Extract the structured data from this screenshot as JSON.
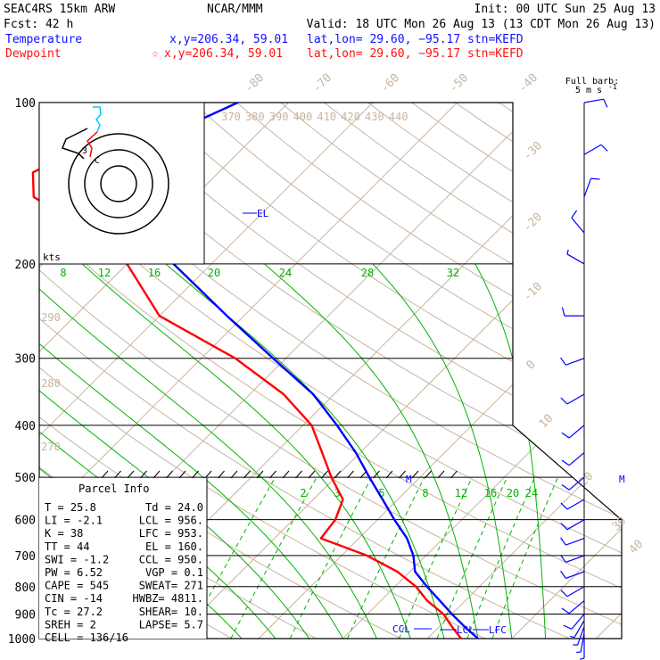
{
  "header": {
    "model": "SEAC4RS 15km ARW",
    "center": "NCAR/MMM",
    "init": "Init: 00 UTC Sun 25 Aug 13",
    "fcst": "Fcst:   42 h",
    "valid": "Valid: 18 UTC Mon 26 Aug 13 (13 CDT Mon 26 Aug 13)",
    "temp_label": "Temperature",
    "temp_xy": "x,y=206.34, 59.01",
    "temp_latlon": "lat,lon= 29.60, −95.17",
    "temp_stn": "stn=KEFD",
    "dew_label": "Dewpoint",
    "dew_xy": "x,y=206.34, 59.01",
    "dew_latlon": "lat,lon= 29.60, −95.17",
    "dew_stn": "stn=KEFD",
    "barb_title_1": "Full barb:",
    "barb_title_2": "5 m s",
    "barb_title_sup": "-1"
  },
  "hodograph": {
    "unit_label": "kts"
  },
  "parcel_info": {
    "title": "Parcel Info",
    "rows": [
      {
        "l": "T   =   25.8",
        "r": "Td =  24.0"
      },
      {
        "l": "LI  =   -2.1",
        "r": "LCL =  956."
      },
      {
        "l": "K   =     38",
        "r": "LFC =  953."
      },
      {
        "l": "TT  =     44",
        "r": "EL  =  160."
      },
      {
        "l": "SWI =   -1.2",
        "r": "CCL =  950."
      },
      {
        "l": "PW  =   6.52",
        "r": "VGP =   0.1"
      },
      {
        "l": "CAPE =   545",
        "r": "SWEAT=  271"
      },
      {
        "l": "CIN  =   -14",
        "r": "HWBZ= 4811."
      },
      {
        "l": "Tc  =   27.2",
        "r": "SHEAR=  10."
      },
      {
        "l": "SREH =     2",
        "r": "LAPSE=  5.7"
      },
      {
        "l": "CELL = 136/16",
        "r": ""
      }
    ]
  },
  "annotations": {
    "el": "EL",
    "ccl": "CCL",
    "lcl": "LCL",
    "lfc": "LFC",
    "m": "M"
  },
  "colors": {
    "temperature": "#0000ff",
    "dewpoint": "#ff0000",
    "isotherm": "#c8b4a0",
    "mixing_ratio": "#00b400",
    "moist_adiabat": "#00b400",
    "axis": "#000000"
  },
  "chart_data": {
    "type": "line",
    "subtype": "skew-T log-P",
    "pressure_levels_hPa": [
      100,
      200,
      300,
      400,
      500,
      600,
      700,
      800,
      900,
      1000
    ],
    "y_tick_labels": [
      "100",
      "200",
      "300",
      "400",
      "500",
      "600",
      "700",
      "800",
      "900",
      "1000"
    ],
    "isotherm_labels": [
      "-80",
      "-70",
      "-60",
      "-50",
      "-40",
      "-30",
      "-20",
      "-10",
      "0",
      "10",
      "20",
      "30",
      "40"
    ],
    "theta_labels": [
      "370",
      "380",
      "390",
      "400",
      "410",
      "420",
      "430",
      "440"
    ],
    "dry_adiabat_labels": [
      "290",
      "280",
      "270"
    ],
    "mixing_ratio_labels_upper": [
      "8",
      "12",
      "16",
      "20",
      "24",
      "28",
      "32"
    ],
    "mixing_ratio_labels_lower": [
      "2",
      "3",
      "5",
      "8",
      "12",
      "16",
      "20",
      "24"
    ],
    "series": [
      {
        "name": "Temperature",
        "color": "#0000ff",
        "points": [
          {
            "p": 1000,
            "t": 26
          },
          {
            "p": 950,
            "t": 23
          },
          {
            "p": 900,
            "t": 20
          },
          {
            "p": 850,
            "t": 17
          },
          {
            "p": 800,
            "t": 13.8
          },
          {
            "p": 750,
            "t": 10.6
          },
          {
            "p": 700,
            "t": 8.5
          },
          {
            "p": 650,
            "t": 5.7
          },
          {
            "p": 600,
            "t": 2.0
          },
          {
            "p": 550,
            "t": -1.8
          },
          {
            "p": 500,
            "t": -6.0
          },
          {
            "p": 450,
            "t": -10.5
          },
          {
            "p": 400,
            "t": -16.0
          },
          {
            "p": 350,
            "t": -22.5
          },
          {
            "p": 300,
            "t": -31.5
          },
          {
            "p": 250,
            "t": -42.0
          },
          {
            "p": 200,
            "t": -54.5
          },
          {
            "p": 175,
            "t": -62.0
          },
          {
            "p": 150,
            "t": -72.5
          },
          {
            "p": 135,
            "t": -77.0
          },
          {
            "p": 120,
            "t": -72.0
          },
          {
            "p": 100,
            "t": -66.0
          }
        ]
      },
      {
        "name": "Dewpoint",
        "color": "#ff0000",
        "points": [
          {
            "p": 1000,
            "t": 24.0
          },
          {
            "p": 950,
            "t": 21.5
          },
          {
            "p": 900,
            "t": 19.0
          },
          {
            "p": 850,
            "t": 15.5
          },
          {
            "p": 800,
            "t": 12.5
          },
          {
            "p": 750,
            "t": 8.5
          },
          {
            "p": 700,
            "t": 3.0
          },
          {
            "p": 650,
            "t": -4.5
          },
          {
            "p": 600,
            "t": -5.0
          },
          {
            "p": 550,
            "t": -6.5
          },
          {
            "p": 500,
            "t": -10.5
          },
          {
            "p": 450,
            "t": -14.5
          },
          {
            "p": 400,
            "t": -19.0
          },
          {
            "p": 350,
            "t": -26.0
          },
          {
            "p": 300,
            "t": -36.0
          },
          {
            "p": 250,
            "t": -50.0
          },
          {
            "p": 200,
            "t": -60.0
          },
          {
            "p": 175,
            "t": -68.0
          },
          {
            "p": 150,
            "t": -79.0
          },
          {
            "p": 135,
            "t": -82.0
          },
          {
            "p": 120,
            "t": -78.5
          },
          {
            "p": 100,
            "t": -77.0
          }
        ]
      }
    ],
    "wind_profile": [
      {
        "p": 1000,
        "speed_ms": 2.5,
        "dir": 180
      },
      {
        "p": 975,
        "speed_ms": 3,
        "dir": 190
      },
      {
        "p": 950,
        "speed_ms": 3,
        "dir": 200
      },
      {
        "p": 925,
        "speed_ms": 3.5,
        "dir": 210
      },
      {
        "p": 900,
        "speed_ms": 4,
        "dir": 220
      },
      {
        "p": 850,
        "speed_ms": 5,
        "dir": 230
      },
      {
        "p": 800,
        "speed_ms": 6,
        "dir": 240
      },
      {
        "p": 750,
        "speed_ms": 6,
        "dir": 250
      },
      {
        "p": 700,
        "speed_ms": 6,
        "dir": 250
      },
      {
        "p": 650,
        "speed_ms": 5,
        "dir": 250
      },
      {
        "p": 600,
        "speed_ms": 5,
        "dir": 240
      },
      {
        "p": 550,
        "speed_ms": 5,
        "dir": 240
      },
      {
        "p": 500,
        "speed_ms": 5,
        "dir": 230
      },
      {
        "p": 450,
        "speed_ms": 5,
        "dir": 230
      },
      {
        "p": 400,
        "speed_ms": 5,
        "dir": 230
      },
      {
        "p": 350,
        "speed_ms": 4,
        "dir": 240
      },
      {
        "p": 300,
        "speed_ms": 4,
        "dir": 250
      },
      {
        "p": 250,
        "speed_ms": 4,
        "dir": 270
      },
      {
        "p": 200,
        "speed_ms": 3,
        "dir": 300
      },
      {
        "p": 175,
        "speed_ms": 4,
        "dir": 320
      },
      {
        "p": 150,
        "speed_ms": 5,
        "dir": 20
      },
      {
        "p": 125,
        "speed_ms": 6,
        "dir": 60
      },
      {
        "p": 100,
        "speed_ms": 6,
        "dir": 80
      }
    ],
    "ylim_hPa": [
      100,
      1000
    ],
    "xlim_degC_at_1000hPa": [
      -26,
      43
    ],
    "yscale": "log",
    "grid": true
  }
}
